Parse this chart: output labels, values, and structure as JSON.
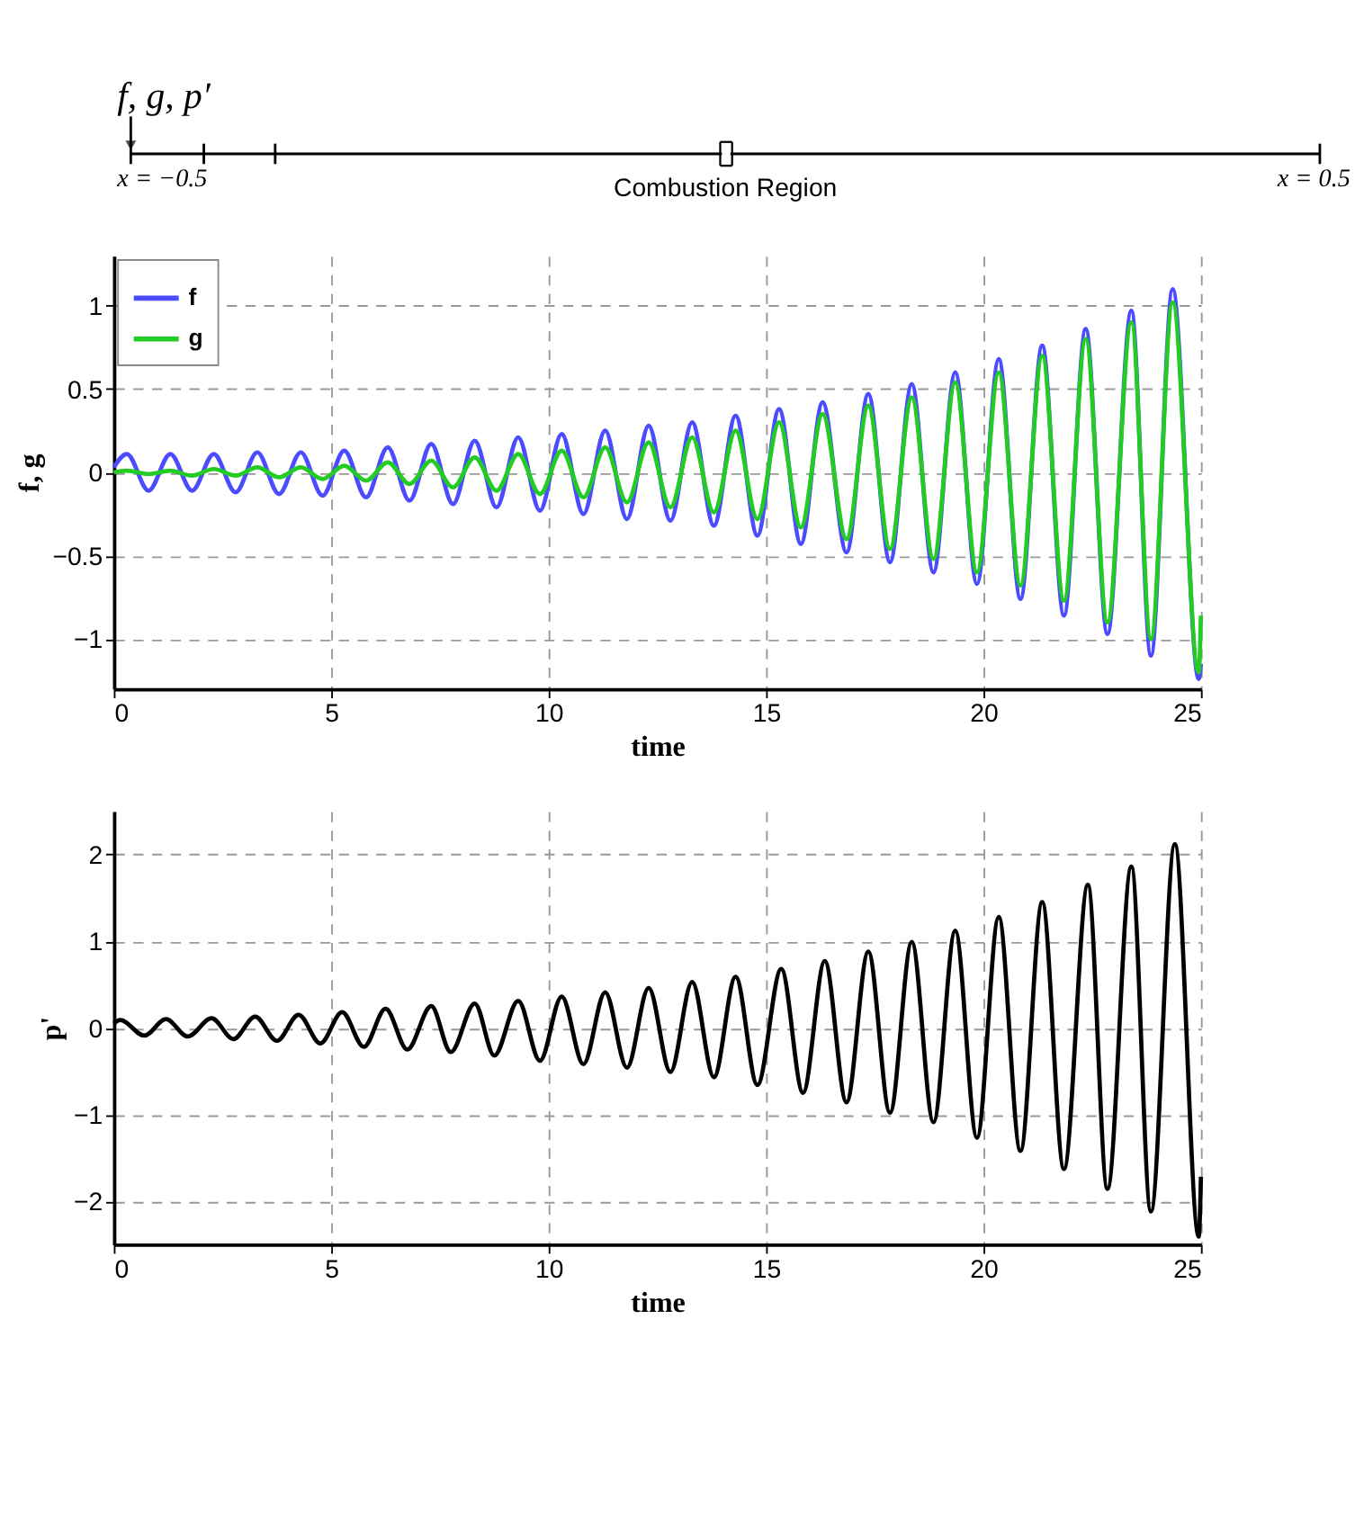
{
  "chart_data": [
    {
      "type": "other",
      "annotations": [
        "f, g, p′",
        "x = −0.5",
        "Combustion Region",
        "x = 0.5"
      ]
    },
    {
      "type": "line",
      "xlabel": "time",
      "ylabel": "f, g",
      "xlim": [
        0,
        25
      ],
      "xticks": [
        0,
        5,
        10,
        15,
        20,
        25
      ],
      "ylim": [
        -1.3,
        1.3
      ],
      "yticks": [
        -1,
        -0.5,
        0,
        0.5,
        1
      ],
      "grid": true,
      "legend": "top left",
      "marker": "none",
      "line_style": "solid",
      "x": [
        0,
        0.3,
        0.8,
        1.3,
        1.8,
        2.3,
        2.8,
        3.3,
        3.8,
        4.3,
        4.8,
        5.3,
        5.8,
        6.3,
        6.8,
        7.3,
        7.8,
        8.3,
        8.8,
        9.3,
        9.8,
        10.3,
        10.8,
        11.3,
        11.8,
        12.3,
        12.8,
        13.3,
        13.8,
        14.3,
        14.8,
        15.3,
        15.8,
        16.3,
        16.85,
        17.35,
        17.85,
        18.35,
        18.85,
        19.35,
        19.85,
        20.35,
        20.85,
        21.35,
        21.85,
        22.35,
        22.85,
        23.4,
        23.85,
        24.35,
        24.95,
        25
      ],
      "series": [
        {
          "name": "f",
          "color": "#4b4bff",
          "values": [
            0.03,
            0.11,
            -0.11,
            0.11,
            -0.11,
            0.11,
            -0.12,
            0.12,
            -0.13,
            0.12,
            -0.14,
            0.13,
            -0.15,
            0.15,
            -0.17,
            0.17,
            -0.19,
            0.19,
            -0.21,
            0.21,
            -0.23,
            0.23,
            -0.25,
            0.25,
            -0.28,
            0.28,
            -0.29,
            0.3,
            -0.32,
            0.34,
            -0.38,
            0.38,
            -0.43,
            0.42,
            -0.48,
            0.47,
            -0.54,
            0.53,
            -0.6,
            0.6,
            -0.67,
            0.68,
            -0.76,
            0.76,
            -0.86,
            0.86,
            -0.97,
            0.97,
            -1.1,
            1.1,
            -1.24,
            -1.15
          ]
        },
        {
          "name": "g",
          "color": "#22cc22",
          "values": [
            0,
            0.01,
            -0.01,
            0.01,
            -0.02,
            0.02,
            -0.02,
            0.03,
            -0.03,
            0.03,
            -0.04,
            0.04,
            -0.05,
            0.06,
            -0.07,
            0.07,
            -0.09,
            0.09,
            -0.11,
            0.11,
            -0.13,
            0.13,
            -0.15,
            0.15,
            -0.18,
            0.18,
            -0.21,
            0.21,
            -0.24,
            0.25,
            -0.28,
            0.3,
            -0.33,
            0.35,
            -0.4,
            0.4,
            -0.46,
            0.45,
            -0.52,
            0.54,
            -0.6,
            0.6,
            -0.68,
            0.7,
            -0.77,
            0.8,
            -0.9,
            0.9,
            -1.0,
            1.02,
            -1.2,
            -0.86
          ]
        }
      ]
    },
    {
      "type": "line",
      "xlabel": "time",
      "ylabel": "p'",
      "xlim": [
        0,
        25
      ],
      "xticks": [
        0,
        5,
        10,
        15,
        20,
        25
      ],
      "ylim": [
        -2.5,
        2.5
      ],
      "yticks": [
        -2,
        -1,
        0,
        1,
        2
      ],
      "grid": true,
      "marker": "none",
      "line_style": "solid",
      "x": [
        0,
        0.15,
        0.7,
        1.2,
        1.7,
        2.25,
        2.75,
        3.25,
        3.75,
        4.25,
        4.75,
        5.25,
        5.75,
        6.25,
        6.75,
        7.3,
        7.75,
        8.3,
        8.75,
        9.3,
        9.8,
        10.3,
        10.8,
        11.3,
        11.8,
        12.3,
        12.8,
        13.3,
        13.8,
        14.3,
        14.8,
        15.35,
        15.85,
        16.35,
        16.85,
        17.35,
        17.85,
        18.35,
        18.85,
        19.35,
        19.85,
        20.35,
        20.85,
        21.35,
        21.85,
        22.4,
        22.85,
        23.4,
        23.85,
        24.4,
        24.95,
        25
      ],
      "series": [
        {
          "color": "#000000",
          "values": [
            0.05,
            0.09,
            -0.09,
            0.1,
            -0.1,
            0.11,
            -0.13,
            0.13,
            -0.15,
            0.15,
            -0.18,
            0.18,
            -0.22,
            0.22,
            -0.25,
            0.25,
            -0.28,
            0.28,
            -0.32,
            0.31,
            -0.38,
            0.36,
            -0.42,
            0.41,
            -0.46,
            0.46,
            -0.51,
            0.53,
            -0.57,
            0.59,
            -0.66,
            0.68,
            -0.75,
            0.77,
            -0.86,
            0.88,
            -0.98,
            0.99,
            -1.09,
            1.12,
            -1.27,
            1.28,
            -1.42,
            1.45,
            -1.63,
            1.65,
            -1.86,
            1.86,
            -2.12,
            2.12,
            -2.41,
            -1.72
          ]
        }
      ]
    }
  ]
}
